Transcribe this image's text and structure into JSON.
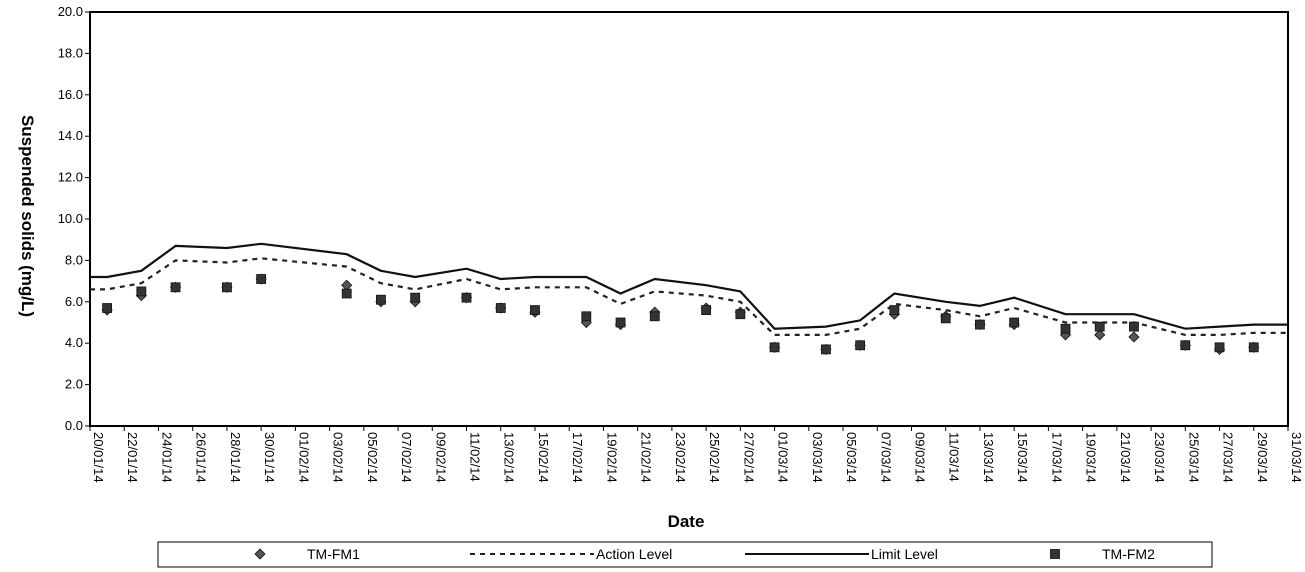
{
  "chart_data": {
    "type": "line",
    "xlabel": "Date",
    "ylabel": "Suspended solids (mg/L)",
    "ylim": [
      0,
      20
    ],
    "y_ticks": [
      "0.0",
      "2.0",
      "4.0",
      "6.0",
      "8.0",
      "10.0",
      "12.0",
      "14.0",
      "16.0",
      "18.0",
      "20.0"
    ],
    "x_tick_labels": [
      "20/01/14",
      "22/01/14",
      "24/01/14",
      "26/01/14",
      "28/01/14",
      "30/01/14",
      "01/02/14",
      "03/02/14",
      "05/02/14",
      "07/02/14",
      "09/02/14",
      "11/02/14",
      "13/02/14",
      "15/02/14",
      "17/02/14",
      "19/02/14",
      "21/02/14",
      "23/02/14",
      "25/02/14",
      "27/02/14",
      "01/03/14",
      "03/03/14",
      "05/03/14",
      "07/03/14",
      "09/03/14",
      "11/03/14",
      "13/03/14",
      "15/03/14",
      "17/03/14",
      "19/03/14",
      "21/03/14",
      "23/03/14",
      "25/03/14",
      "27/03/14",
      "29/03/14",
      "31/03/14"
    ],
    "grid": false,
    "legend_position": "bottom",
    "series": [
      {
        "name": "TM-FM1",
        "style": "marker-diamond",
        "color": "#555555",
        "points": [
          [
            "21/01/14",
            5.6
          ],
          [
            "23/01/14",
            6.3
          ],
          [
            "25/01/14",
            6.7
          ],
          [
            "28/01/14",
            6.7
          ],
          [
            "30/01/14",
            7.1
          ],
          [
            "04/02/14",
            6.8
          ],
          [
            "06/02/14",
            6.0
          ],
          [
            "08/02/14",
            6.0
          ],
          [
            "11/02/14",
            6.2
          ],
          [
            "13/02/14",
            5.7
          ],
          [
            "15/02/14",
            5.5
          ],
          [
            "18/02/14",
            5.0
          ],
          [
            "20/02/14",
            4.9
          ],
          [
            "22/02/14",
            5.5
          ],
          [
            "25/02/14",
            5.7
          ],
          [
            "27/02/14",
            5.5
          ],
          [
            "01/03/14",
            3.8
          ],
          [
            "04/03/14",
            3.7
          ],
          [
            "06/03/14",
            3.9
          ],
          [
            "08/03/14",
            5.4
          ],
          [
            "11/03/14",
            5.3
          ],
          [
            "13/03/14",
            4.9
          ],
          [
            "15/03/14",
            4.9
          ],
          [
            "18/03/14",
            4.4
          ],
          [
            "20/03/14",
            4.4
          ],
          [
            "22/03/14",
            4.3
          ],
          [
            "25/03/14",
            3.9
          ],
          [
            "27/03/14",
            3.7
          ],
          [
            "29/03/14",
            3.8
          ]
        ]
      },
      {
        "name": "Action Level",
        "style": "dashed-line",
        "color": "#222222",
        "points": [
          [
            "20/01/14",
            6.6
          ],
          [
            "21/01/14",
            6.6
          ],
          [
            "23/01/14",
            6.9
          ],
          [
            "25/01/14",
            8.0
          ],
          [
            "28/01/14",
            7.9
          ],
          [
            "30/01/14",
            8.1
          ],
          [
            "04/02/14",
            7.7
          ],
          [
            "06/02/14",
            6.9
          ],
          [
            "08/02/14",
            6.6
          ],
          [
            "11/02/14",
            7.1
          ],
          [
            "13/02/14",
            6.6
          ],
          [
            "15/02/14",
            6.7
          ],
          [
            "18/02/14",
            6.7
          ],
          [
            "20/02/14",
            5.9
          ],
          [
            "22/02/14",
            6.5
          ],
          [
            "25/02/14",
            6.3
          ],
          [
            "27/02/14",
            6.0
          ],
          [
            "01/03/14",
            4.4
          ],
          [
            "04/03/14",
            4.4
          ],
          [
            "06/03/14",
            4.7
          ],
          [
            "08/03/14",
            5.9
          ],
          [
            "11/03/14",
            5.6
          ],
          [
            "13/03/14",
            5.3
          ],
          [
            "15/03/14",
            5.7
          ],
          [
            "18/03/14",
            5.0
          ],
          [
            "20/03/14",
            5.0
          ],
          [
            "22/03/14",
            5.0
          ],
          [
            "25/03/14",
            4.4
          ],
          [
            "27/03/14",
            4.4
          ],
          [
            "29/03/14",
            4.5
          ],
          [
            "31/03/14",
            4.5
          ]
        ]
      },
      {
        "name": "Limit Level",
        "style": "solid-line",
        "color": "#111111",
        "points": [
          [
            "20/01/14",
            7.2
          ],
          [
            "21/01/14",
            7.2
          ],
          [
            "23/01/14",
            7.5
          ],
          [
            "25/01/14",
            8.7
          ],
          [
            "28/01/14",
            8.6
          ],
          [
            "30/01/14",
            8.8
          ],
          [
            "04/02/14",
            8.3
          ],
          [
            "06/02/14",
            7.5
          ],
          [
            "08/02/14",
            7.2
          ],
          [
            "11/02/14",
            7.6
          ],
          [
            "13/02/14",
            7.1
          ],
          [
            "15/02/14",
            7.2
          ],
          [
            "18/02/14",
            7.2
          ],
          [
            "20/02/14",
            6.4
          ],
          [
            "22/02/14",
            7.1
          ],
          [
            "25/02/14",
            6.8
          ],
          [
            "27/02/14",
            6.5
          ],
          [
            "01/03/14",
            4.7
          ],
          [
            "04/03/14",
            4.8
          ],
          [
            "06/03/14",
            5.1
          ],
          [
            "08/03/14",
            6.4
          ],
          [
            "11/03/14",
            6.0
          ],
          [
            "13/03/14",
            5.8
          ],
          [
            "15/03/14",
            6.2
          ],
          [
            "18/03/14",
            5.4
          ],
          [
            "20/03/14",
            5.4
          ],
          [
            "22/03/14",
            5.4
          ],
          [
            "25/03/14",
            4.7
          ],
          [
            "27/03/14",
            4.8
          ],
          [
            "29/03/14",
            4.9
          ],
          [
            "31/03/14",
            4.9
          ]
        ]
      },
      {
        "name": "TM-FM2",
        "style": "marker-square",
        "color": "#333333",
        "points": [
          [
            "21/01/14",
            5.7
          ],
          [
            "23/01/14",
            6.5
          ],
          [
            "25/01/14",
            6.7
          ],
          [
            "28/01/14",
            6.7
          ],
          [
            "30/01/14",
            7.1
          ],
          [
            "04/02/14",
            6.4
          ],
          [
            "06/02/14",
            6.1
          ],
          [
            "08/02/14",
            6.2
          ],
          [
            "11/02/14",
            6.2
          ],
          [
            "13/02/14",
            5.7
          ],
          [
            "15/02/14",
            5.6
          ],
          [
            "18/02/14",
            5.3
          ],
          [
            "20/02/14",
            5.0
          ],
          [
            "22/02/14",
            5.3
          ],
          [
            "25/02/14",
            5.6
          ],
          [
            "27/02/14",
            5.4
          ],
          [
            "01/03/14",
            3.8
          ],
          [
            "04/03/14",
            3.7
          ],
          [
            "06/03/14",
            3.9
          ],
          [
            "08/03/14",
            5.6
          ],
          [
            "11/03/14",
            5.2
          ],
          [
            "13/03/14",
            4.9
          ],
          [
            "15/03/14",
            5.0
          ],
          [
            "18/03/14",
            4.7
          ],
          [
            "20/03/14",
            4.8
          ],
          [
            "22/03/14",
            4.8
          ],
          [
            "25/03/14",
            3.9
          ],
          [
            "27/03/14",
            3.8
          ],
          [
            "29/03/14",
            3.8
          ]
        ]
      }
    ]
  }
}
